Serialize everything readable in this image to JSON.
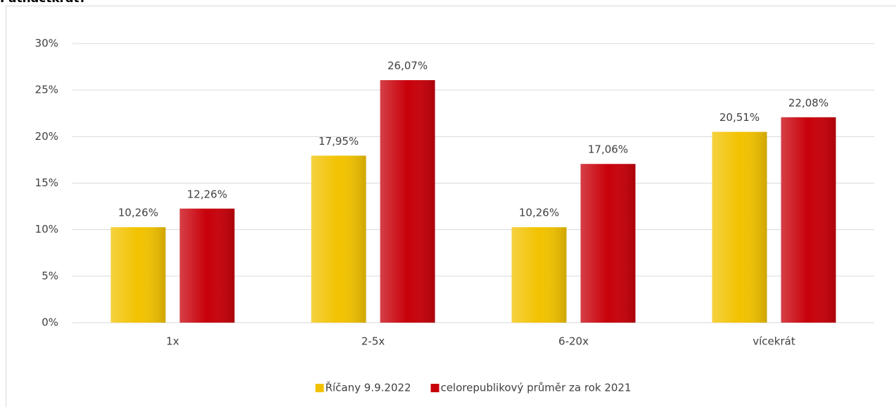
{
  "chart_data": {
    "type": "bar",
    "title": "Patnáctkrát?",
    "categories": [
      "1x",
      "2-5x",
      "6-20x",
      "vícekrát"
    ],
    "series": [
      {
        "name": "Říčany 9.9.2022",
        "color": "#f2c200",
        "values": [
          10.26,
          17.95,
          10.26,
          20.51
        ],
        "value_labels": [
          "10,26%",
          "17,95%",
          "10,26%",
          "20,51%"
        ]
      },
      {
        "name": "celorepublikový průměr za rok 2021",
        "color": "#c8000a",
        "values": [
          12.26,
          26.07,
          17.06,
          22.08
        ],
        "value_labels": [
          "12,26%",
          "26,07%",
          "17,06%",
          "22,08%"
        ]
      }
    ],
    "ylim": [
      0,
      30
    ],
    "yticks": [
      {
        "value": 0,
        "label": "0%"
      },
      {
        "value": 5,
        "label": "5%"
      },
      {
        "value": 10,
        "label": "10%"
      },
      {
        "value": 15,
        "label": "15%"
      },
      {
        "value": 20,
        "label": "20%"
      },
      {
        "value": 25,
        "label": "25%"
      },
      {
        "value": 30,
        "label": "30%"
      }
    ],
    "grid": true,
    "legend": "bottom"
  }
}
